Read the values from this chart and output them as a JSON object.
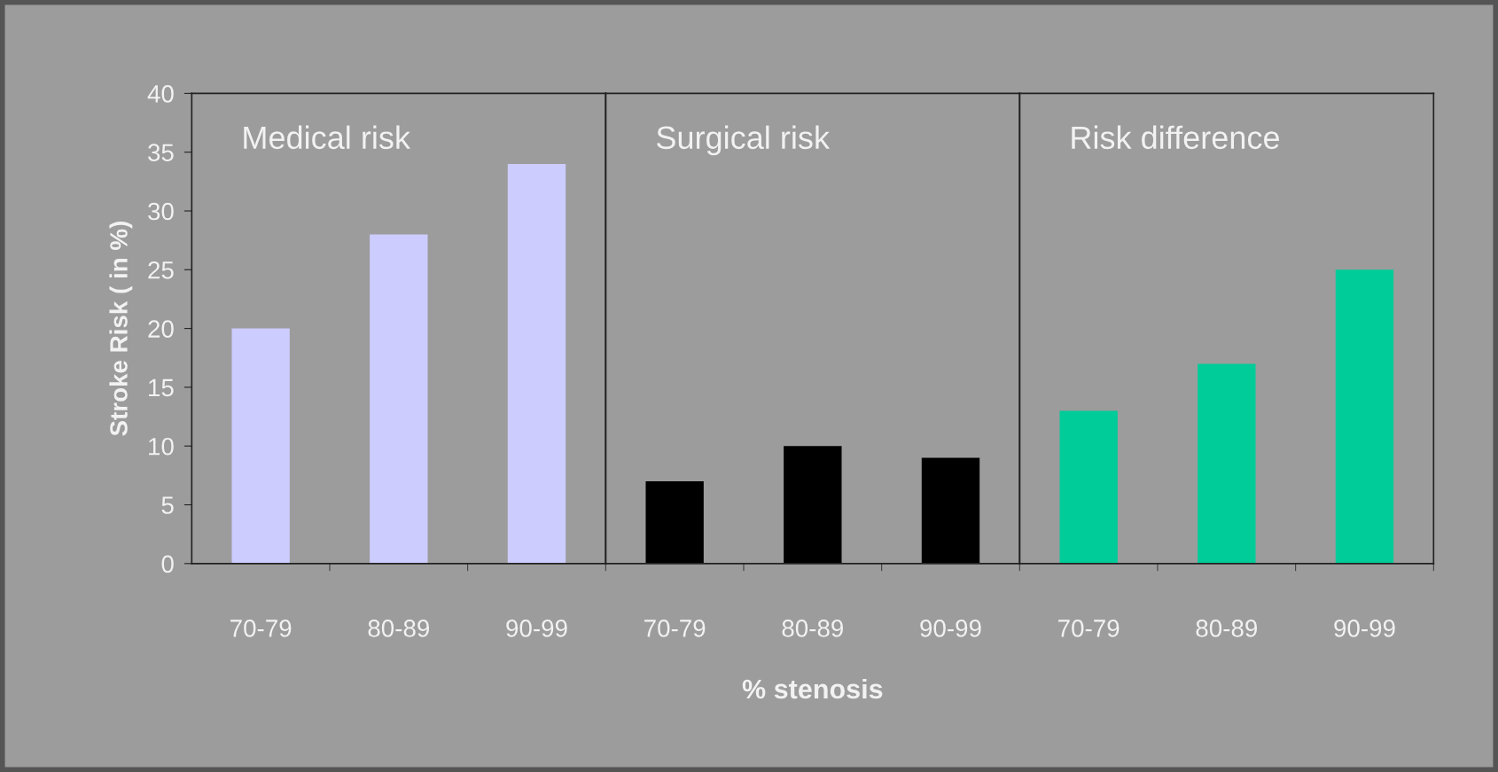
{
  "chart_data": [
    {
      "type": "bar",
      "title": "Medical risk",
      "ylabel": "Stroke Risk ( in %)",
      "categories": [
        "70-79",
        "80-89",
        "90-99"
      ],
      "values": [
        20,
        28,
        34
      ],
      "color": "#ccccff",
      "ylim": [
        0,
        40
      ],
      "yticks": [
        0,
        5,
        10,
        15,
        20,
        25,
        30,
        35,
        40
      ],
      "grid": false,
      "legend": false
    },
    {
      "type": "bar",
      "title": "Surgical risk",
      "xlabel": "% stenosis",
      "categories": [
        "70-79",
        "80-89",
        "90-99"
      ],
      "values": [
        7,
        10,
        9
      ],
      "color": "#000000",
      "ylim": [
        0,
        40
      ],
      "yticks": [
        0,
        5,
        10,
        15,
        20,
        25,
        30,
        35,
        40
      ],
      "tick_labels": "x",
      "grid": false,
      "legend": false
    },
    {
      "type": "bar",
      "title": "Risk difference",
      "categories": [
        "70-79",
        "80-89",
        "90-99"
      ],
      "values": [
        13,
        17,
        25
      ],
      "color": "#00cc99",
      "ylim": [
        0,
        40
      ],
      "yticks": [
        0,
        5,
        10,
        15,
        20,
        25,
        30,
        35,
        40
      ],
      "tick_labels": "x",
      "grid": false,
      "legend": false
    }
  ]
}
